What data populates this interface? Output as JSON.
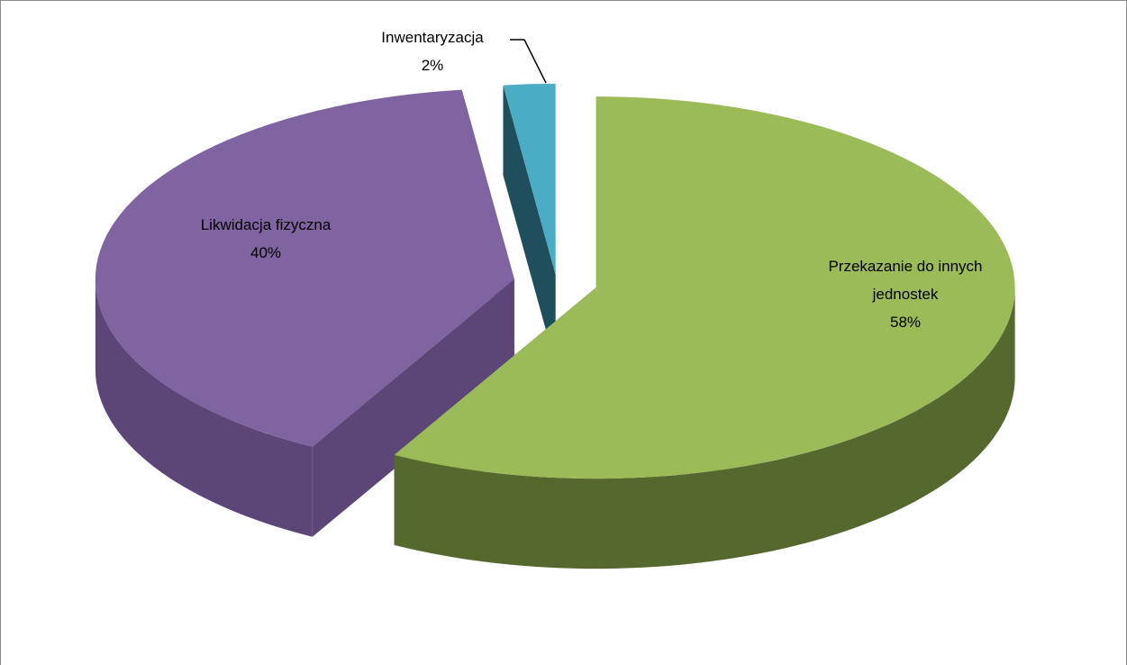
{
  "chart_data": {
    "type": "pie3d",
    "categories": [
      "Przekazanie do innych jednostek",
      "Likwidacja fizyczna",
      "Inwentaryzacja"
    ],
    "values": [
      58,
      40,
      2
    ],
    "value_labels": [
      "58%",
      "40%",
      "2%"
    ],
    "colors": [
      "#9bbb59",
      "#8064a2",
      "#4bacc6"
    ],
    "side_colors": [
      "#55692f",
      "#5b4677",
      "#1f4e5c"
    ]
  }
}
